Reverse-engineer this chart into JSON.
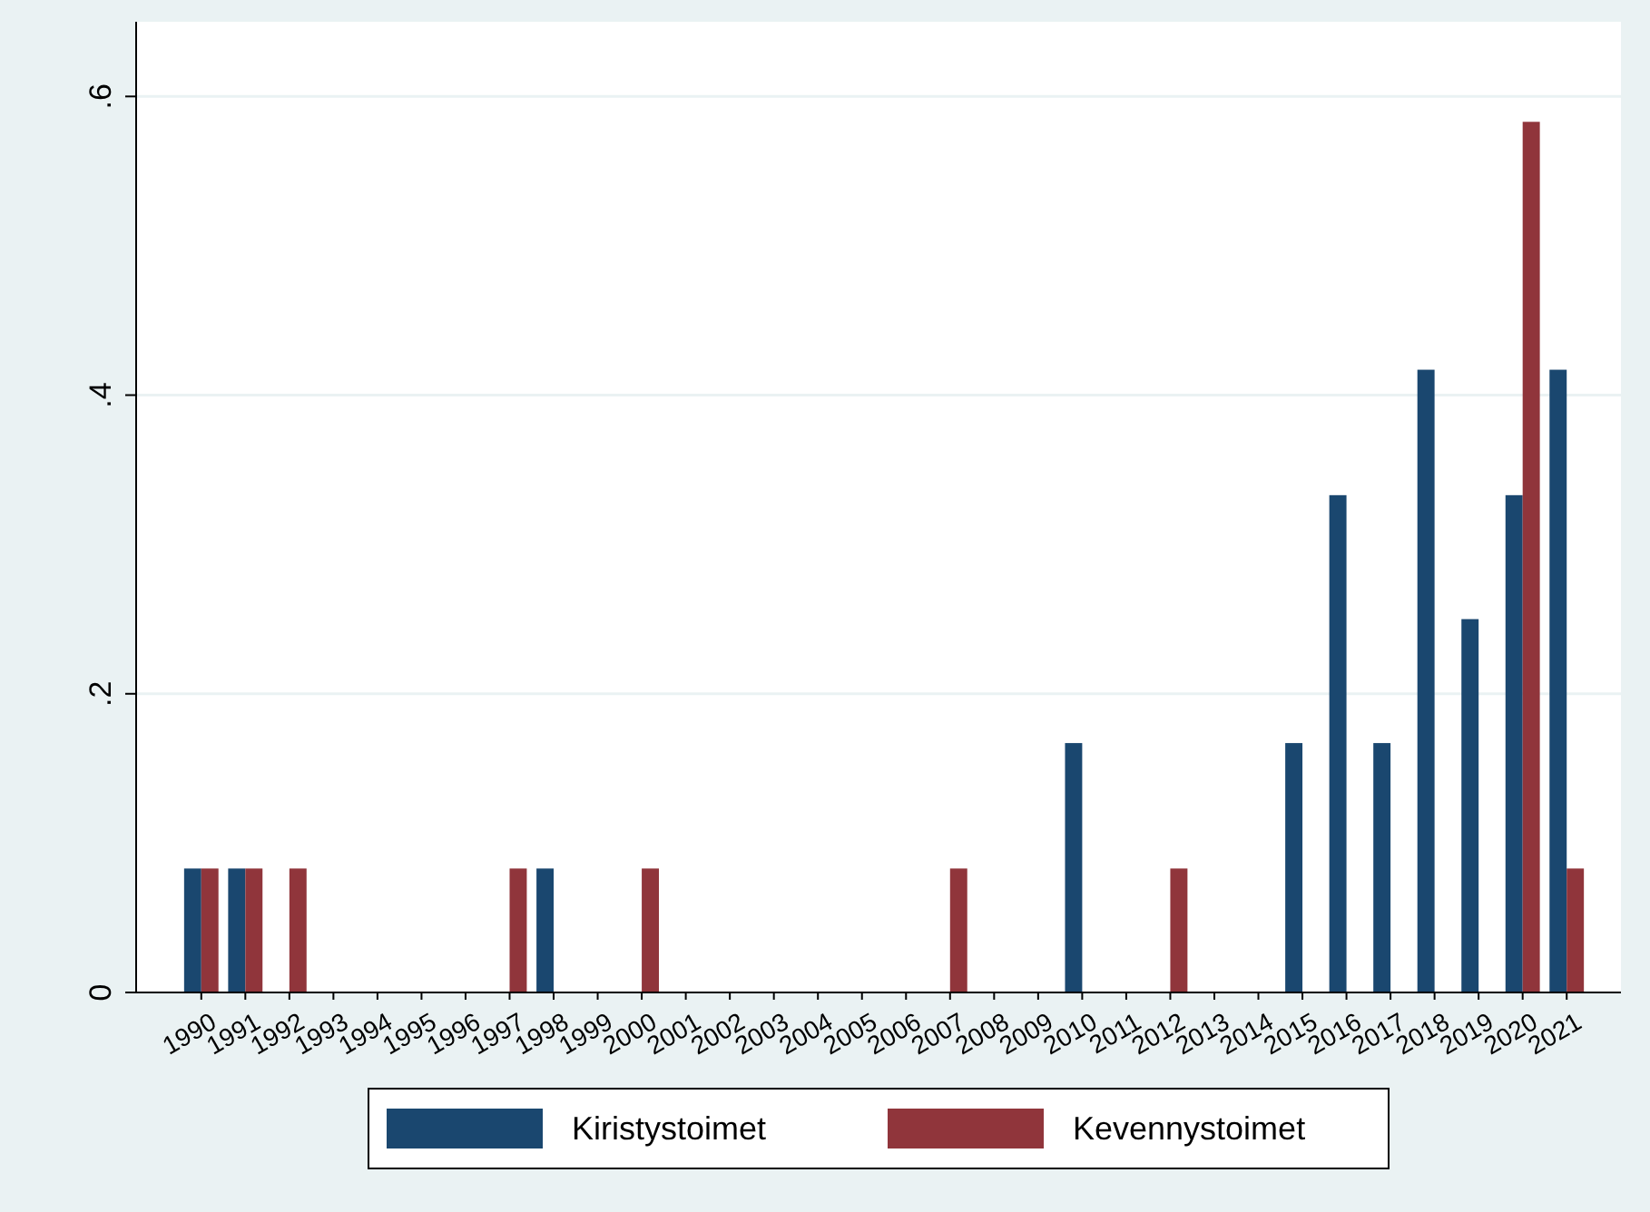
{
  "chart_data": {
    "type": "bar",
    "categories": [
      "1990",
      "1991",
      "1992",
      "1993",
      "1994",
      "1995",
      "1996",
      "1997",
      "1998",
      "1999",
      "2000",
      "2001",
      "2002",
      "2003",
      "2004",
      "2005",
      "2006",
      "2007",
      "2008",
      "2009",
      "2010",
      "2011",
      "2012",
      "2013",
      "2014",
      "2015",
      "2016",
      "2017",
      "2018",
      "2019",
      "2020",
      "2021"
    ],
    "series": [
      {
        "name": "Kiristystoimet",
        "color": "#1a476f",
        "values": [
          0.083,
          0.083,
          0,
          0,
          0,
          0,
          0,
          0,
          0.083,
          0,
          0,
          0,
          0,
          0,
          0,
          0,
          0,
          0,
          0,
          0,
          0.167,
          0,
          0,
          0,
          0,
          0.167,
          0.333,
          0.167,
          0.417,
          0.25,
          0.333,
          0.417
        ]
      },
      {
        "name": "Kevennystoimet",
        "color": "#90353b",
        "values": [
          0.083,
          0.083,
          0.083,
          0,
          0,
          0,
          0,
          0.083,
          0,
          0,
          0.083,
          0,
          0,
          0,
          0,
          0,
          0,
          0.083,
          0,
          0,
          0,
          0,
          0.083,
          0,
          0,
          0,
          0,
          0,
          0,
          0,
          0.583,
          0.083
        ]
      }
    ],
    "ylim": [
      0,
      0.65
    ],
    "yticks": [
      0,
      {
        "value": 0.2,
        "label": ".2"
      },
      {
        "value": 0.4,
        "label": ".4"
      },
      {
        "value": 0.6,
        "label": ".6"
      }
    ],
    "grid": "y",
    "legend": "bottom"
  }
}
